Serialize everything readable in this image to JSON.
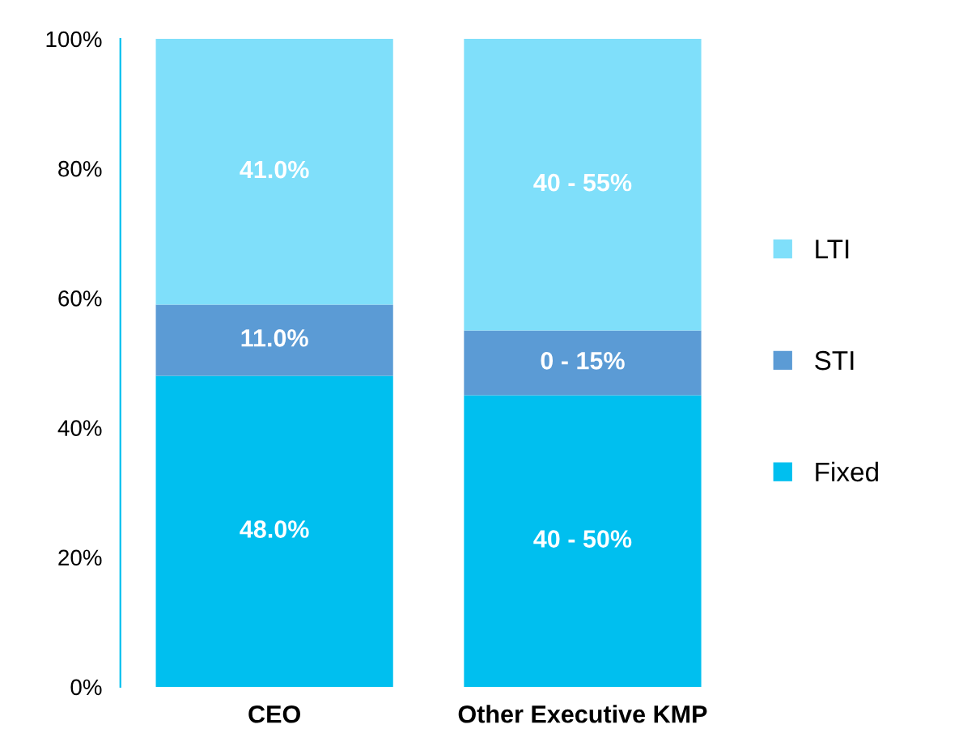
{
  "chart_data": {
    "type": "bar",
    "stacked": true,
    "categories": [
      "CEO",
      "Other Executive KMP"
    ],
    "series": [
      {
        "name": "Fixed",
        "color": "#00bfef",
        "values": [
          48,
          45
        ],
        "value_labels": [
          "48.0%",
          null
        ]
      },
      {
        "name": "STI",
        "color": "#5b9bd5",
        "values": [
          11,
          10
        ],
        "value_labels": [
          "11.0%",
          null
        ]
      },
      {
        "name": "LTI",
        "color": "#7fdffa",
        "values": [
          41,
          45
        ],
        "value_labels": [
          "41.0%",
          null
        ]
      }
    ],
    "annotations": [
      "40 - 50%",
      "0 - 15%",
      "40 - 55%"
    ],
    "ylim": [
      0,
      100
    ],
    "yticks": [
      {
        "value": 0,
        "label": "0%"
      },
      {
        "value": 20,
        "label": "20%"
      },
      {
        "value": 40,
        "label": "40%"
      },
      {
        "value": 60,
        "label": "60%"
      },
      {
        "value": 80,
        "label": "80%"
      },
      {
        "value": 100,
        "label": "100%"
      }
    ],
    "grid": false,
    "legend": "right"
  }
}
